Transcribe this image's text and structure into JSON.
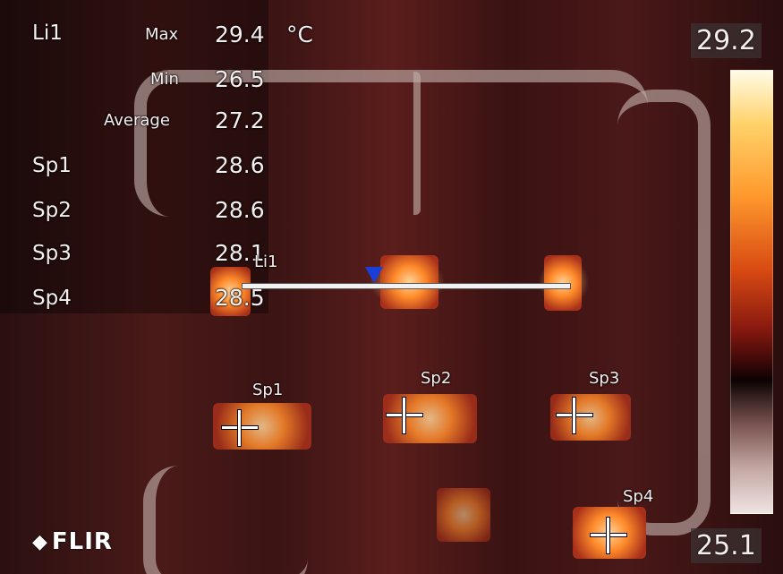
{
  "readings": {
    "line_name": "Li1",
    "max_label": "Max",
    "max_value": "29.4",
    "unit": "°C",
    "min_label": "Min",
    "min_value": "26.5",
    "avg_label": "Average",
    "avg_value": "27.2",
    "spots": [
      {
        "label": "Sp1",
        "value": "28.6"
      },
      {
        "label": "Sp2",
        "value": "28.6"
      },
      {
        "label": "Sp3",
        "value": "28.1"
      },
      {
        "label": "Sp4",
        "value": "28.5"
      }
    ]
  },
  "scale": {
    "max": "29.2",
    "min": "25.1",
    "palette": "iron",
    "top_color": "#fffbe6",
    "bottom_color": "#efe4e2"
  },
  "markers": {
    "line_label": "Li1",
    "spot_labels": [
      "Sp1",
      "Sp2",
      "Sp3",
      "Sp4"
    ]
  },
  "brand": {
    "logo_text": "FLIR",
    "logo_icon": "flir-diamond-icon"
  }
}
